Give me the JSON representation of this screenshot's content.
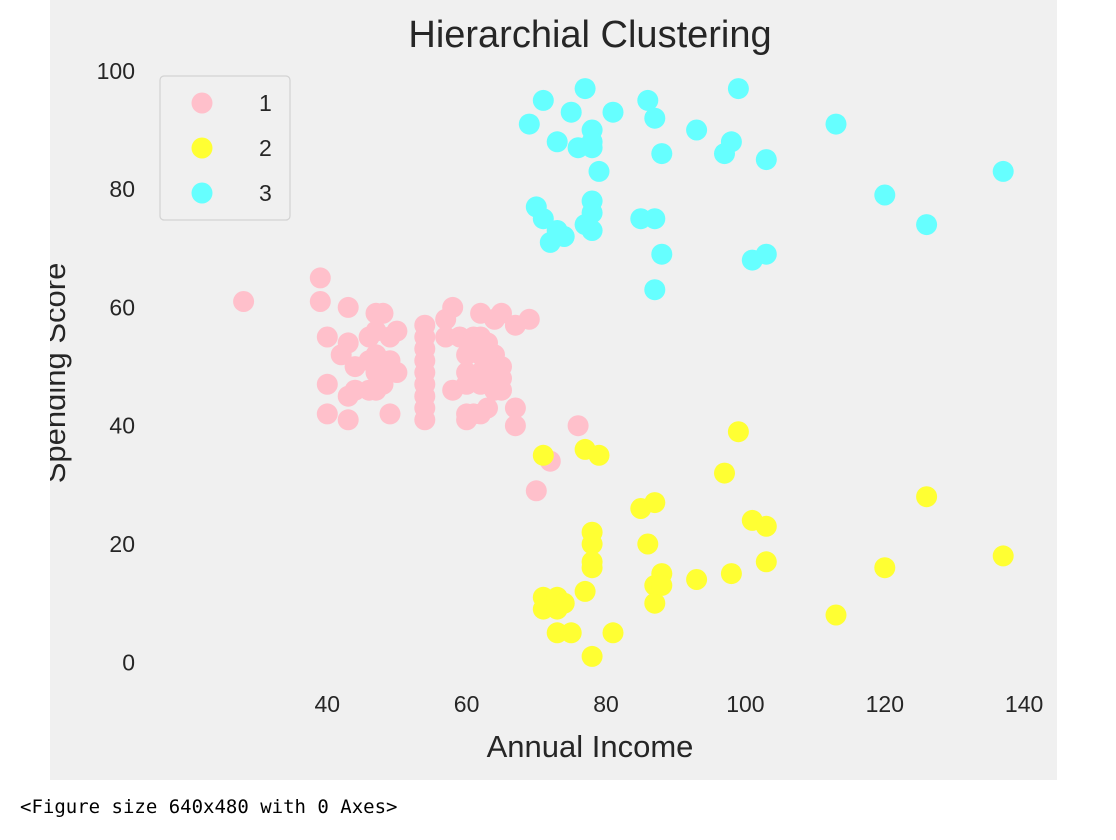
{
  "output": {
    "figure_text": "<Figure size 640x480 with 0 Axes>"
  },
  "chart_data": {
    "type": "scatter",
    "title": "Hierarchial Clustering",
    "xlabel": "Annual Income",
    "ylabel": "Spending Score",
    "xlim": [
      16,
      144
    ],
    "ylim": [
      -4,
      102
    ],
    "xticks": [
      40,
      60,
      80,
      100,
      120,
      140
    ],
    "yticks": [
      0,
      20,
      40,
      60,
      80,
      100
    ],
    "grid": false,
    "legend_placement": "top-left",
    "series": [
      {
        "name": "1",
        "color": "#ffc0cb",
        "points": [
          [
            28,
            61
          ],
          [
            39,
            65
          ],
          [
            39,
            61
          ],
          [
            40,
            55
          ],
          [
            40,
            47
          ],
          [
            40,
            42
          ],
          [
            42,
            52
          ],
          [
            43,
            60
          ],
          [
            43,
            54
          ],
          [
            43,
            45
          ],
          [
            43,
            41
          ],
          [
            44,
            50
          ],
          [
            44,
            46
          ],
          [
            46,
            55
          ],
          [
            46,
            51
          ],
          [
            46,
            46
          ],
          [
            47,
            59
          ],
          [
            47,
            56
          ],
          [
            47,
            52
          ],
          [
            47,
            49
          ],
          [
            47,
            46
          ],
          [
            48,
            59
          ],
          [
            48,
            50
          ],
          [
            48,
            47
          ],
          [
            49,
            55
          ],
          [
            49,
            51
          ],
          [
            49,
            42
          ],
          [
            50,
            56
          ],
          [
            50,
            49
          ],
          [
            54,
            57
          ],
          [
            54,
            55
          ],
          [
            54,
            53
          ],
          [
            54,
            51
          ],
          [
            54,
            49
          ],
          [
            54,
            47
          ],
          [
            54,
            45
          ],
          [
            54,
            43
          ],
          [
            54,
            41
          ],
          [
            57,
            58
          ],
          [
            57,
            55
          ],
          [
            58,
            60
          ],
          [
            58,
            46
          ],
          [
            59,
            55
          ],
          [
            60,
            52
          ],
          [
            60,
            49
          ],
          [
            60,
            47
          ],
          [
            60,
            42
          ],
          [
            60,
            41
          ],
          [
            61,
            55
          ],
          [
            61,
            53
          ],
          [
            61,
            48
          ],
          [
            61,
            42
          ],
          [
            62,
            59
          ],
          [
            62,
            55
          ],
          [
            62,
            52
          ],
          [
            62,
            49
          ],
          [
            62,
            47
          ],
          [
            62,
            42
          ],
          [
            63,
            54
          ],
          [
            63,
            51
          ],
          [
            63,
            48
          ],
          [
            63,
            43
          ],
          [
            64,
            58
          ],
          [
            64,
            52
          ],
          [
            64,
            49
          ],
          [
            64,
            46
          ],
          [
            65,
            59
          ],
          [
            65,
            50
          ],
          [
            65,
            48
          ],
          [
            65,
            46
          ],
          [
            67,
            57
          ],
          [
            67,
            43
          ],
          [
            67,
            40
          ],
          [
            69,
            58
          ],
          [
            70,
            29
          ],
          [
            72,
            34
          ],
          [
            76,
            40
          ]
        ]
      },
      {
        "name": "2",
        "color": "#ffff33",
        "points": [
          [
            71,
            35
          ],
          [
            71,
            11
          ],
          [
            71,
            9
          ],
          [
            73,
            11
          ],
          [
            73,
            9
          ],
          [
            73,
            5
          ],
          [
            74,
            10
          ],
          [
            75,
            5
          ],
          [
            77,
            12
          ],
          [
            77,
            36
          ],
          [
            78,
            22
          ],
          [
            78,
            20
          ],
          [
            78,
            17
          ],
          [
            78,
            16
          ],
          [
            78,
            1
          ],
          [
            79,
            35
          ],
          [
            81,
            5
          ],
          [
            85,
            26
          ],
          [
            86,
            20
          ],
          [
            87,
            27
          ],
          [
            87,
            13
          ],
          [
            87,
            10
          ],
          [
            88,
            15
          ],
          [
            88,
            13
          ],
          [
            93,
            14
          ],
          [
            97,
            32
          ],
          [
            98,
            15
          ],
          [
            99,
            39
          ],
          [
            101,
            24
          ],
          [
            103,
            23
          ],
          [
            103,
            17
          ],
          [
            113,
            8
          ],
          [
            120,
            16
          ],
          [
            126,
            28
          ],
          [
            137,
            18
          ]
        ]
      },
      {
        "name": "3",
        "color": "#66ffff",
        "points": [
          [
            69,
            91
          ],
          [
            70,
            77
          ],
          [
            71,
            95
          ],
          [
            71,
            75
          ],
          [
            72,
            71
          ],
          [
            73,
            88
          ],
          [
            73,
            73
          ],
          [
            74,
            72
          ],
          [
            75,
            93
          ],
          [
            76,
            87
          ],
          [
            77,
            97
          ],
          [
            77,
            74
          ],
          [
            78,
            90
          ],
          [
            78,
            88
          ],
          [
            78,
            87
          ],
          [
            78,
            78
          ],
          [
            78,
            76
          ],
          [
            78,
            73
          ],
          [
            79,
            83
          ],
          [
            81,
            93
          ],
          [
            85,
            75
          ],
          [
            86,
            95
          ],
          [
            87,
            92
          ],
          [
            87,
            75
          ],
          [
            87,
            63
          ],
          [
            88,
            86
          ],
          [
            88,
            69
          ],
          [
            93,
            90
          ],
          [
            97,
            86
          ],
          [
            98,
            88
          ],
          [
            99,
            97
          ],
          [
            101,
            68
          ],
          [
            103,
            85
          ],
          [
            103,
            69
          ],
          [
            113,
            91
          ],
          [
            120,
            79
          ],
          [
            126,
            74
          ],
          [
            137,
            83
          ]
        ]
      }
    ]
  }
}
